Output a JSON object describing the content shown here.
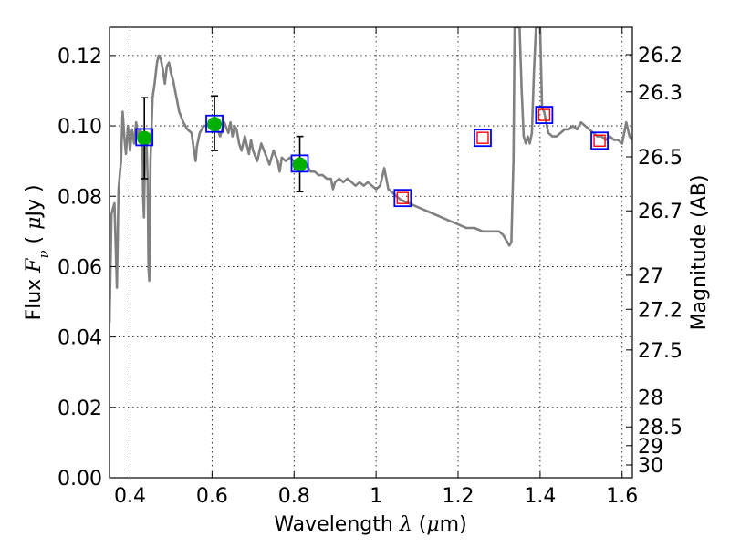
{
  "chart_data": {
    "type": "line",
    "xlabel": {
      "prefix": "Wavelength ",
      "symbol": "λ",
      "unit_open": " (",
      "unit_symbol": "μ",
      "unit_rest": "m)"
    },
    "ylabel": {
      "prefix": "Flux ",
      "symbol": "F",
      "subscript": "ν",
      "unit_open": " ( ",
      "unit_symbol": "μ",
      "unit_rest": "Jy )"
    },
    "y2label": "Magnitude (AB)",
    "xlim": [
      0.35,
      1.625
    ],
    "ylim": [
      0.0,
      0.128
    ],
    "grid": true,
    "x_ticks": [
      {
        "value": 0.4,
        "label": "0.4"
      },
      {
        "value": 0.6,
        "label": "0.6"
      },
      {
        "value": 0.8,
        "label": "0.8"
      },
      {
        "value": 1.0,
        "label": "1"
      },
      {
        "value": 1.2,
        "label": "1.2"
      },
      {
        "value": 1.4,
        "label": "1.4"
      },
      {
        "value": 1.6,
        "label": "1.6"
      }
    ],
    "y_ticks": [
      {
        "value": 0.0,
        "label": "0.00"
      },
      {
        "value": 0.02,
        "label": "0.02"
      },
      {
        "value": 0.04,
        "label": "0.04"
      },
      {
        "value": 0.06,
        "label": "0.06"
      },
      {
        "value": 0.08,
        "label": "0.08"
      },
      {
        "value": 0.1,
        "label": "0.10"
      },
      {
        "value": 0.12,
        "label": "0.12"
      }
    ],
    "y2_ticks": [
      {
        "mag": 26.2,
        "label": "26.2"
      },
      {
        "mag": 26.3,
        "label": "26.3"
      },
      {
        "mag": 26.5,
        "label": "26.5"
      },
      {
        "mag": 26.7,
        "label": "26.7"
      },
      {
        "mag": 27.0,
        "label": "27"
      },
      {
        "mag": 27.2,
        "label": "27.2"
      },
      {
        "mag": 27.5,
        "label": "27.5"
      },
      {
        "mag": 28.0,
        "label": "28"
      },
      {
        "mag": 28.5,
        "label": "28.5"
      },
      {
        "mag": 29.0,
        "label": "29"
      },
      {
        "mag": 30.0,
        "label": "30"
      }
    ],
    "series": [
      {
        "type": "line",
        "color": "#808080",
        "points": [
          [
            0.35,
            0.044
          ],
          [
            0.355,
            0.075
          ],
          [
            0.362,
            0.078
          ],
          [
            0.368,
            0.054
          ],
          [
            0.372,
            0.082
          ],
          [
            0.378,
            0.09
          ],
          [
            0.382,
            0.104
          ],
          [
            0.386,
            0.097
          ],
          [
            0.39,
            0.092
          ],
          [
            0.395,
            0.1
          ],
          [
            0.4,
            0.093
          ],
          [
            0.405,
            0.099
          ],
          [
            0.41,
            0.095
          ],
          [
            0.415,
            0.101
          ],
          [
            0.42,
            0.097
          ],
          [
            0.425,
            0.099
          ],
          [
            0.43,
            0.097
          ],
          [
            0.432,
            0.08
          ],
          [
            0.434,
            0.074
          ],
          [
            0.437,
            0.095
          ],
          [
            0.44,
            0.097
          ],
          [
            0.443,
            0.085
          ],
          [
            0.445,
            0.06
          ],
          [
            0.447,
            0.056
          ],
          [
            0.45,
            0.09
          ],
          [
            0.455,
            0.108
          ],
          [
            0.46,
            0.112
          ],
          [
            0.466,
            0.118
          ],
          [
            0.47,
            0.12
          ],
          [
            0.475,
            0.119
          ],
          [
            0.48,
            0.116
          ],
          [
            0.485,
            0.112
          ],
          [
            0.49,
            0.117
          ],
          [
            0.495,
            0.118
          ],
          [
            0.5,
            0.115
          ],
          [
            0.505,
            0.113
          ],
          [
            0.51,
            0.11
          ],
          [
            0.515,
            0.107
          ],
          [
            0.52,
            0.104
          ],
          [
            0.53,
            0.101
          ],
          [
            0.54,
            0.099
          ],
          [
            0.55,
            0.098
          ],
          [
            0.555,
            0.094
          ],
          [
            0.56,
            0.09
          ],
          [
            0.563,
            0.094
          ],
          [
            0.57,
            0.098
          ],
          [
            0.58,
            0.1
          ],
          [
            0.59,
            0.1
          ],
          [
            0.6,
            0.099
          ],
          [
            0.61,
            0.1
          ],
          [
            0.62,
            0.097
          ],
          [
            0.63,
            0.101
          ],
          [
            0.64,
            0.098
          ],
          [
            0.645,
            0.101
          ],
          [
            0.65,
            0.097
          ],
          [
            0.655,
            0.1
          ],
          [
            0.66,
            0.099
          ],
          [
            0.666,
            0.095
          ],
          [
            0.672,
            0.093
          ],
          [
            0.68,
            0.097
          ],
          [
            0.69,
            0.092
          ],
          [
            0.695,
            0.096
          ],
          [
            0.7,
            0.093
          ],
          [
            0.71,
            0.09
          ],
          [
            0.72,
            0.095
          ],
          [
            0.73,
            0.092
          ],
          [
            0.74,
            0.089
          ],
          [
            0.75,
            0.093
          ],
          [
            0.76,
            0.09
          ],
          [
            0.765,
            0.087
          ],
          [
            0.77,
            0.091
          ],
          [
            0.78,
            0.09
          ],
          [
            0.79,
            0.091
          ],
          [
            0.8,
            0.09
          ],
          [
            0.81,
            0.089
          ],
          [
            0.82,
            0.088
          ],
          [
            0.83,
            0.089
          ],
          [
            0.84,
            0.087
          ],
          [
            0.85,
            0.087
          ],
          [
            0.86,
            0.086
          ],
          [
            0.87,
            0.086
          ],
          [
            0.88,
            0.085
          ],
          [
            0.89,
            0.085
          ],
          [
            0.895,
            0.082
          ],
          [
            0.9,
            0.084
          ],
          [
            0.91,
            0.085
          ],
          [
            0.92,
            0.084
          ],
          [
            0.93,
            0.085
          ],
          [
            0.94,
            0.084
          ],
          [
            0.95,
            0.083
          ],
          [
            0.96,
            0.084
          ],
          [
            0.97,
            0.083
          ],
          [
            0.98,
            0.084
          ],
          [
            0.99,
            0.083
          ],
          [
            1.0,
            0.082
          ],
          [
            1.01,
            0.083
          ],
          [
            1.02,
            0.088
          ],
          [
            1.03,
            0.082
          ],
          [
            1.04,
            0.081
          ],
          [
            1.05,
            0.08
          ],
          [
            1.06,
            0.079
          ],
          [
            1.08,
            0.078
          ],
          [
            1.1,
            0.077
          ],
          [
            1.12,
            0.076
          ],
          [
            1.14,
            0.075
          ],
          [
            1.16,
            0.074
          ],
          [
            1.18,
            0.073
          ],
          [
            1.2,
            0.072
          ],
          [
            1.22,
            0.071
          ],
          [
            1.24,
            0.071
          ],
          [
            1.26,
            0.07
          ],
          [
            1.28,
            0.07
          ],
          [
            1.3,
            0.07
          ],
          [
            1.31,
            0.069
          ],
          [
            1.32,
            0.067
          ],
          [
            1.325,
            0.066
          ],
          [
            1.33,
            0.067
          ],
          [
            1.335,
            0.09
          ],
          [
            1.338,
            0.128
          ],
          [
            1.35,
            0.128
          ],
          [
            1.355,
            0.11
          ],
          [
            1.36,
            0.097
          ],
          [
            1.365,
            0.095
          ],
          [
            1.37,
            0.097
          ],
          [
            1.375,
            0.095
          ],
          [
            1.38,
            0.098
          ],
          [
            1.385,
            0.115
          ],
          [
            1.39,
            0.128
          ],
          [
            1.4,
            0.128
          ],
          [
            1.405,
            0.105
          ],
          [
            1.41,
            0.104
          ],
          [
            1.42,
            0.098
          ],
          [
            1.43,
            0.097
          ],
          [
            1.44,
            0.097
          ],
          [
            1.45,
            0.098
          ],
          [
            1.46,
            0.099
          ],
          [
            1.47,
            0.099
          ],
          [
            1.48,
            0.1
          ],
          [
            1.49,
            0.099
          ],
          [
            1.5,
            0.101
          ],
          [
            1.51,
            0.1
          ],
          [
            1.52,
            0.099
          ],
          [
            1.53,
            0.098
          ],
          [
            1.54,
            0.097
          ],
          [
            1.55,
            0.097
          ],
          [
            1.56,
            0.096
          ],
          [
            1.57,
            0.097
          ],
          [
            1.58,
            0.096
          ],
          [
            1.59,
            0.096
          ],
          [
            1.6,
            0.095
          ],
          [
            1.61,
            0.101
          ],
          [
            1.618,
            0.097
          ],
          [
            1.625,
            0.096
          ]
        ]
      },
      {
        "type": "points",
        "marker": "circle",
        "color": "#00b000",
        "points": [
          {
            "x": 0.435,
            "y": 0.0965,
            "yerr": [
              0.085,
              0.108
            ]
          },
          {
            "x": 0.606,
            "y": 0.1005,
            "yerr": [
              0.093,
              0.1085
            ]
          },
          {
            "x": 0.814,
            "y": 0.089,
            "yerr": [
              0.0813,
              0.097
            ]
          }
        ]
      },
      {
        "type": "points",
        "marker": "square",
        "color": "#0000ff",
        "points": [
          {
            "x": 0.435,
            "y": 0.0968
          },
          {
            "x": 0.606,
            "y": 0.1006
          },
          {
            "x": 0.814,
            "y": 0.0893
          },
          {
            "x": 1.065,
            "y": 0.0795
          },
          {
            "x": 1.26,
            "y": 0.0966
          },
          {
            "x": 1.41,
            "y": 0.1031
          },
          {
            "x": 1.545,
            "y": 0.0958
          }
        ]
      },
      {
        "type": "points",
        "marker": "square",
        "color": "#ff0000",
        "points": [
          {
            "x": 1.065,
            "y": 0.0795
          },
          {
            "x": 1.26,
            "y": 0.0966
          },
          {
            "x": 1.41,
            "y": 0.1031
          },
          {
            "x": 1.545,
            "y": 0.0958
          }
        ]
      }
    ]
  }
}
